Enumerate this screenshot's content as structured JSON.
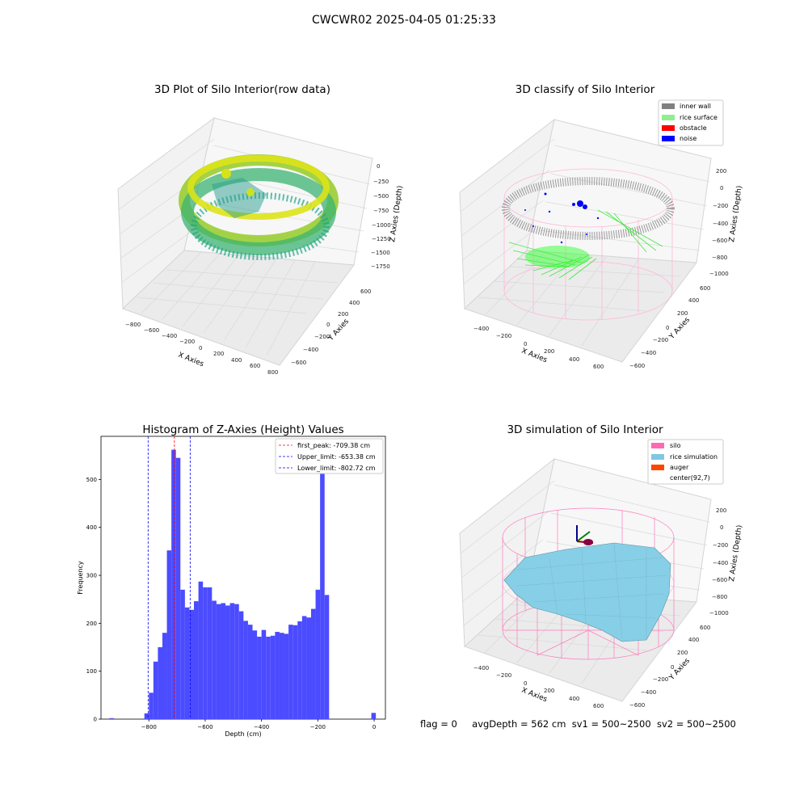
{
  "figure_title": "CWCWR02 2025-04-05 01:25:33",
  "status_line": {
    "flag": "flag = 0",
    "avg_depth": "avgDepth = 562 cm",
    "sv1": "sv1 = 500~2500",
    "sv2": "sv2 = 500~2500"
  },
  "colors": {
    "inner_wall": "#808080",
    "rice_surface": "#90ee90",
    "obstacle": "#ff0000",
    "noise": "#0000ff",
    "silo": "#ff69b4",
    "rice_simulation": "#7ec8e3",
    "auger": "#ff4500",
    "histogram_bar": "#4b4bff"
  },
  "chart_data": [
    {
      "type": "scatter",
      "title": "3D Plot of Silo Interior(row data)",
      "xlabel": "X Axies",
      "ylabel": "Y Axies",
      "zlabel": "Z Axies (Depth)",
      "x_ticks": [
        "−800",
        "−600",
        "−400",
        "−200",
        "0",
        "200",
        "400",
        "600",
        "800"
      ],
      "y_ticks": [
        "−600",
        "−400",
        "−200",
        "0",
        "200",
        "400",
        "600"
      ],
      "z_ticks": [
        "0",
        "−250",
        "−500",
        "−750",
        "−1000",
        "−1250",
        "−1500",
        "−1750"
      ],
      "xlim": [
        -800,
        800
      ],
      "ylim": [
        -600,
        600
      ],
      "zlim": [
        -1750,
        0
      ],
      "colormap": "viridis"
    },
    {
      "type": "scatter",
      "title": "3D classify of Silo Interior",
      "xlabel": "X Axies",
      "ylabel": "Y Axies",
      "zlabel": "Z Axies (Depth)",
      "x_ticks": [
        "−400",
        "−200",
        "0",
        "200",
        "400",
        "600"
      ],
      "y_ticks": [
        "−600",
        "−400",
        "−200",
        "0",
        "200",
        "400",
        "600"
      ],
      "z_ticks": [
        "200",
        "0",
        "−200",
        "−400",
        "−600",
        "−800",
        "−1000"
      ],
      "xlim": [
        -400,
        600
      ],
      "ylim": [
        -600,
        600
      ],
      "zlim": [
        -1000,
        200
      ],
      "legend": [
        "inner wall",
        "rice surface",
        "obstacle",
        "noise"
      ],
      "legend_position": "top-right"
    },
    {
      "type": "bar",
      "title": "Histogram of Z-Axies (Height) Values",
      "xlabel": "Depth (cm)",
      "ylabel": "Frequency",
      "xlim": [
        -970,
        40
      ],
      "ylim": [
        0,
        590
      ],
      "x_ticks": [
        -800,
        -600,
        -400,
        -200,
        0
      ],
      "y_ticks": [
        0,
        100,
        200,
        300,
        400,
        500
      ],
      "bin_start": -816,
      "bin_width": 16,
      "values": [
        12,
        55,
        120,
        150,
        180,
        352,
        562,
        545,
        270,
        233,
        228,
        246,
        287,
        275,
        275,
        247,
        240,
        242,
        237,
        242,
        240,
        225,
        205,
        197,
        185,
        172,
        186,
        172,
        174,
        182,
        180,
        178,
        197,
        196,
        204,
        215,
        212,
        230,
        270,
        513,
        259
      ],
      "outliers": [
        {
          "x_range": [
            -940,
            -924
          ],
          "value": 2
        },
        {
          "x_range": [
            -10,
            6
          ],
          "value": 13
        }
      ],
      "lines": [
        {
          "label": "first_peak: -709.38 cm",
          "x": -709.38,
          "color": "#ff0000"
        },
        {
          "label": "Upper_limit: -653.38 cm",
          "x": -653.38,
          "color": "#0000ff"
        },
        {
          "label": "Lower_limit: -802.72 cm",
          "x": -802.72,
          "color": "#0000ff"
        }
      ],
      "legend_position": "top-right"
    },
    {
      "type": "area",
      "title": "3D simulation of Silo Interior",
      "xlabel": "X Axies",
      "ylabel": "Y Axies",
      "zlabel": "Z Axies (Depth)",
      "x_ticks": [
        "−400",
        "−200",
        "0",
        "200",
        "400",
        "600"
      ],
      "y_ticks": [
        "−600",
        "−400",
        "−200",
        "0",
        "200",
        "400",
        "600"
      ],
      "z_ticks": [
        "200",
        "0",
        "−200",
        "−400",
        "−600",
        "−800",
        "−1000"
      ],
      "xlim": [
        -400,
        600
      ],
      "ylim": [
        -600,
        600
      ],
      "zlim": [
        -1000,
        200
      ],
      "legend": [
        "silo",
        "rice simulation",
        "auger",
        "center(92,7)"
      ],
      "legend_position": "top-right"
    }
  ]
}
